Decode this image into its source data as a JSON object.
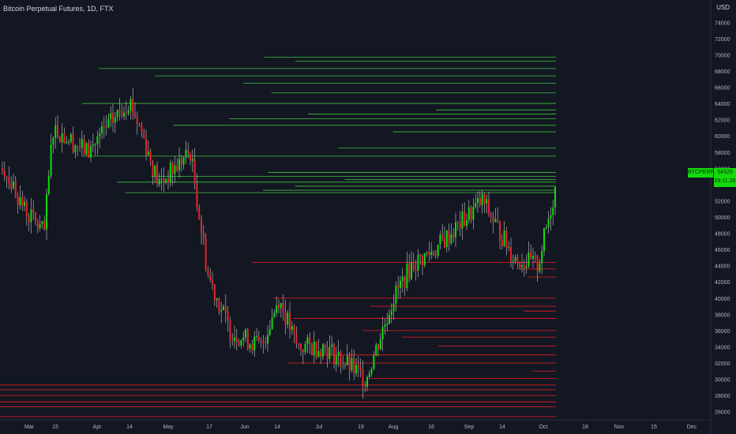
{
  "header": {
    "title": "Bitcoin Perpetual Futures, 1D, FTX",
    "currency": "USD"
  },
  "price_tag": {
    "symbol": "BTCPERP",
    "price": "54329",
    "countdown": "09:11:26"
  },
  "colors": {
    "up": "#14d90d",
    "down": "#e8232b",
    "bg": "#131722",
    "text": "#b2b5be",
    "hline_up": "#3fbf3f",
    "hline_down": "#d11b22"
  },
  "chart_data": {
    "type": "candlestick",
    "y_ticks": [
      26000,
      28000,
      30000,
      32000,
      34000,
      36000,
      38000,
      40000,
      42000,
      44000,
      46000,
      48000,
      50000,
      52000,
      54000,
      56000,
      58000,
      60000,
      62000,
      64000,
      66000,
      68000,
      70000,
      72000,
      74000
    ],
    "ylim": [
      25000,
      75000
    ],
    "x_ticks": [
      "Mar",
      "15",
      "Apr",
      "14",
      "May",
      "17",
      "Jun",
      "14",
      "Jul",
      "19",
      "Aug",
      "16",
      "Sep",
      "14",
      "Oct",
      "18",
      "Nov",
      "15",
      "Dec"
    ],
    "grid": false,
    "legend": "none",
    "anchors": [
      [
        "Mar",
        56000
      ],
      [
        "Mar",
        51000
      ],
      [
        "15",
        48000
      ],
      [
        "15",
        61000
      ],
      [
        "Apr",
        58000
      ],
      [
        "14",
        64500
      ],
      [
        "14",
        60000
      ],
      [
        "May",
        54000
      ],
      [
        "May",
        58000
      ],
      [
        "17",
        43000
      ],
      [
        "Jun",
        36000
      ],
      [
        "Jun",
        34000
      ],
      [
        "14",
        40000
      ],
      [
        "14",
        34000
      ],
      [
        "Jul",
        34000
      ],
      [
        "19",
        30000
      ],
      [
        "Aug",
        40000
      ],
      [
        "Aug",
        44000
      ],
      [
        "16",
        46000
      ],
      [
        "Sep",
        50000
      ],
      [
        "Sep",
        52000
      ],
      [
        "14",
        45000
      ],
      [
        "Oct",
        44000
      ],
      [
        "Oct",
        54300
      ]
    ],
    "resistance_levels": [
      69700,
      69200,
      68300,
      67400,
      66500,
      65300,
      64000,
      63200,
      62700,
      62100,
      61300,
      60500,
      58500,
      57500,
      55500,
      55000,
      54600,
      54300,
      53800,
      53300,
      53000
    ],
    "support_levels": [
      44400,
      43600,
      42600,
      40000,
      39000,
      38400,
      37500,
      36000,
      35200,
      34100,
      33000,
      32000,
      31000,
      30100,
      29300,
      28700,
      28000,
      27200,
      26600,
      25400
    ]
  }
}
